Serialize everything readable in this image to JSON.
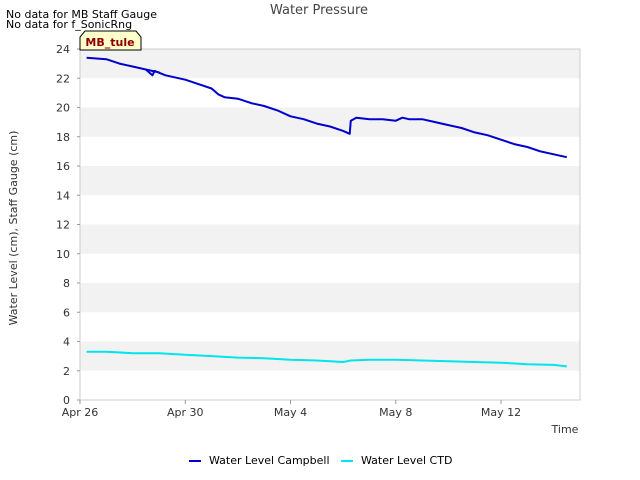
{
  "notices": [
    "No data for MB Staff Gauge",
    "No data for f_SonicRng"
  ],
  "site_label": "MB_tule",
  "colors": {
    "campbell": "#0000cc",
    "ctd": "#00e5ee",
    "band": "#f2f2f2",
    "site_label_bg": "#ffffcc",
    "site_label_text": "#8b0000"
  },
  "chart_data": {
    "type": "line",
    "title": "Water Pressure",
    "xlabel": "Time",
    "ylabel": "Water Level (cm), Staff Gauge (cm)",
    "ylim": [
      0,
      24
    ],
    "xlim": [
      "2023-04-26",
      "2023-05-15"
    ],
    "yticks": [
      0,
      2,
      4,
      6,
      8,
      10,
      12,
      14,
      16,
      18,
      20,
      22,
      24
    ],
    "xticks": [
      {
        "x": "2023-04-26",
        "label": "Apr 26"
      },
      {
        "x": "2023-04-30",
        "label": "Apr 30"
      },
      {
        "x": "2023-05-04",
        "label": "May 4"
      },
      {
        "x": "2023-05-08",
        "label": "May 8"
      },
      {
        "x": "2023-05-12",
        "label": "May 12"
      }
    ],
    "grid": "alternating horizontal bands",
    "legend": "bottom",
    "series": [
      {
        "name": "Water Level Campbell",
        "color": "#0000cc",
        "points": [
          [
            "2023-04-26 06:00",
            23.4
          ],
          [
            "2023-04-27 00:00",
            23.3
          ],
          [
            "2023-04-27 12:00",
            23.0
          ],
          [
            "2023-04-28 00:00",
            22.8
          ],
          [
            "2023-04-28 12:00",
            22.6
          ],
          [
            "2023-04-29 00:00",
            22.4
          ],
          [
            "2023-04-28 12:00",
            22.6
          ],
          [
            "2023-04-28 18:00",
            22.2
          ],
          [
            "2023-04-28 20:00",
            22.5
          ],
          [
            "2023-04-29 06:00",
            22.2
          ],
          [
            "2023-04-30 00:00",
            21.9
          ],
          [
            "2023-04-30 12:00",
            21.6
          ],
          [
            "2023-05-01 00:00",
            21.3
          ],
          [
            "2023-05-01 06:00",
            20.9
          ],
          [
            "2023-05-01 12:00",
            20.7
          ],
          [
            "2023-05-02 00:00",
            20.6
          ],
          [
            "2023-05-02 12:00",
            20.3
          ],
          [
            "2023-05-03 00:00",
            20.1
          ],
          [
            "2023-05-03 12:00",
            19.8
          ],
          [
            "2023-05-04 00:00",
            19.4
          ],
          [
            "2023-05-04 12:00",
            19.2
          ],
          [
            "2023-05-05 00:00",
            18.9
          ],
          [
            "2023-05-05 12:00",
            18.7
          ],
          [
            "2023-05-06 00:00",
            18.4
          ],
          [
            "2023-05-06 06:00",
            18.2
          ],
          [
            "2023-05-06 07:00",
            19.1
          ],
          [
            "2023-05-06 12:00",
            19.3
          ],
          [
            "2023-05-07 00:00",
            19.2
          ],
          [
            "2023-05-07 12:00",
            19.2
          ],
          [
            "2023-05-08 00:00",
            19.1
          ],
          [
            "2023-05-08 06:00",
            19.3
          ],
          [
            "2023-05-08 12:00",
            19.2
          ],
          [
            "2023-05-09 00:00",
            19.2
          ],
          [
            "2023-05-09 12:00",
            19.0
          ],
          [
            "2023-05-10 00:00",
            18.8
          ],
          [
            "2023-05-10 12:00",
            18.6
          ],
          [
            "2023-05-11 00:00",
            18.3
          ],
          [
            "2023-05-11 12:00",
            18.1
          ],
          [
            "2023-05-12 00:00",
            17.8
          ],
          [
            "2023-05-12 12:00",
            17.5
          ],
          [
            "2023-05-13 00:00",
            17.3
          ],
          [
            "2023-05-13 12:00",
            17.0
          ],
          [
            "2023-05-14 00:00",
            16.8
          ],
          [
            "2023-05-14 12:00",
            16.6
          ]
        ]
      },
      {
        "name": "Water Level CTD",
        "color": "#00e5ee",
        "points": [
          [
            "2023-04-26 06:00",
            3.3
          ],
          [
            "2023-04-27 00:00",
            3.3
          ],
          [
            "2023-04-28 00:00",
            3.2
          ],
          [
            "2023-04-29 00:00",
            3.2
          ],
          [
            "2023-04-30 00:00",
            3.1
          ],
          [
            "2023-05-01 00:00",
            3.0
          ],
          [
            "2023-05-02 00:00",
            2.9
          ],
          [
            "2023-05-03 00:00",
            2.85
          ],
          [
            "2023-05-04 00:00",
            2.75
          ],
          [
            "2023-05-05 00:00",
            2.7
          ],
          [
            "2023-05-06 00:00",
            2.6
          ],
          [
            "2023-05-06 07:00",
            2.7
          ],
          [
            "2023-05-07 00:00",
            2.75
          ],
          [
            "2023-05-08 00:00",
            2.75
          ],
          [
            "2023-05-09 00:00",
            2.7
          ],
          [
            "2023-05-10 00:00",
            2.65
          ],
          [
            "2023-05-11 00:00",
            2.6
          ],
          [
            "2023-05-12 00:00",
            2.55
          ],
          [
            "2023-05-13 00:00",
            2.45
          ],
          [
            "2023-05-14 00:00",
            2.4
          ],
          [
            "2023-05-14 12:00",
            2.3
          ]
        ]
      }
    ]
  }
}
